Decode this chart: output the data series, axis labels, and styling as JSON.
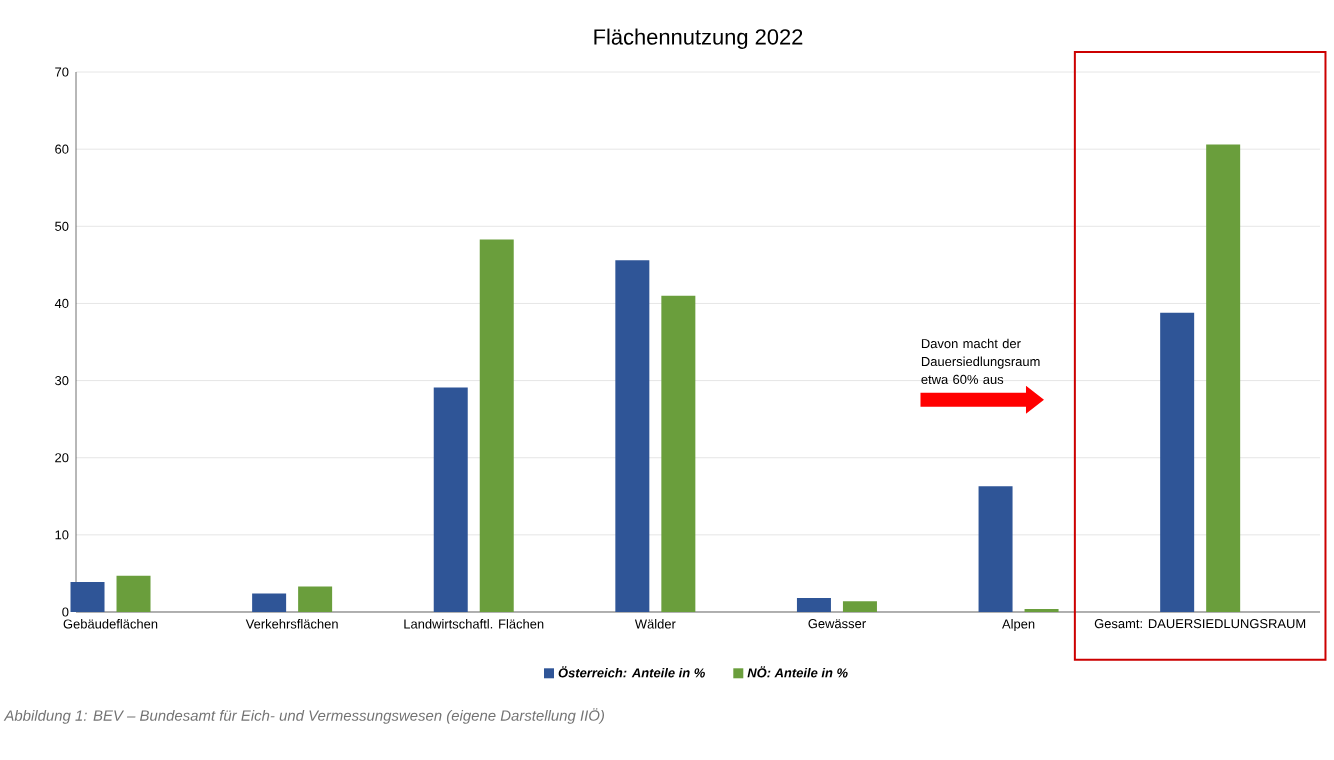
{
  "chart_data": {
    "type": "bar",
    "title": "Flächennutzung 2022",
    "categories": [
      "Gebäudeflächen",
      "Verkehrsflächen",
      "Landwirtschaftl. Flächen",
      "Wälder",
      "Gewässer",
      "Alpen",
      "Gesamt: DAUERSIEDLUNGSRAUM"
    ],
    "series": [
      {
        "name": "Österreich: Anteile in %",
        "color": "#2f5597",
        "values": [
          3.9,
          2.4,
          29.1,
          45.6,
          1.8,
          16.3,
          38.8
        ]
      },
      {
        "name": "NÖ: Anteile in %",
        "color": "#6a9e3c",
        "values": [
          4.7,
          3.3,
          48.3,
          41.0,
          1.4,
          0.4,
          60.6
        ]
      }
    ],
    "ylim": [
      0,
      70
    ],
    "yticks": [
      0,
      10,
      20,
      30,
      40,
      50,
      60,
      70
    ],
    "grid": "y",
    "legend": "bottom",
    "annotations": [
      "Davon macht der Dauersiedlungsraum etwa 60% aus",
      "Abbildung 1: BEV – Bundesamt für Eich- und Vermessungswesen (eigene Darstellung IIÖ)"
    ]
  }
}
